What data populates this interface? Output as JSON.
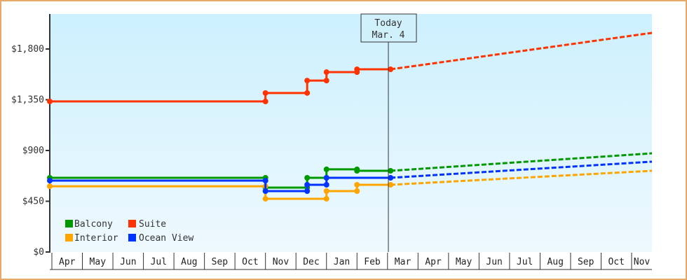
{
  "chart_data": {
    "type": "line",
    "title": "",
    "xlabel": "",
    "ylabel": "",
    "ylim": [
      0,
      2100
    ],
    "y_ticks": [
      {
        "value": 0,
        "label": "$0"
      },
      {
        "value": 450,
        "label": "$450"
      },
      {
        "value": 900,
        "label": "$900"
      },
      {
        "value": 1350,
        "label": "$1,350"
      },
      {
        "value": 1800,
        "label": "$1,800"
      }
    ],
    "x_months": [
      "Apr",
      "May",
      "Jun",
      "Jul",
      "Aug",
      "Sep",
      "Oct",
      "Nov",
      "Dec",
      "Jan",
      "Feb",
      "Mar",
      "Apr",
      "May",
      "Jun",
      "Jul",
      "Aug",
      "Sep",
      "Oct",
      "Nov"
    ],
    "today_marker": {
      "line1": "Today",
      "line2": "Mar. 4"
    },
    "grid": false,
    "legend_position": "bottom-left inside plot",
    "series": [
      {
        "name": "Balcony",
        "color": "#009900",
        "history": [
          [
            "Apr 1",
            658
          ],
          [
            "Nov 1",
            658
          ],
          [
            "Nov 1",
            571
          ],
          [
            "Dec 12",
            571
          ],
          [
            "Dec 12",
            658
          ],
          [
            "Jan 1",
            658
          ],
          [
            "Jan 1",
            733
          ],
          [
            "Feb 1",
            733
          ],
          [
            "Feb 1",
            720
          ],
          [
            "Mar 4",
            720
          ]
        ],
        "forecast": [
          [
            "Mar 4",
            720
          ],
          [
            "Nov 30",
            875
          ]
        ]
      },
      {
        "name": "Suite",
        "color": "#ff3300",
        "history": [
          [
            "Apr 1",
            1335
          ],
          [
            "Nov 1",
            1335
          ],
          [
            "Nov 1",
            1410
          ],
          [
            "Dec 12",
            1410
          ],
          [
            "Dec 12",
            1520
          ],
          [
            "Jan 1",
            1520
          ],
          [
            "Jan 1",
            1595
          ],
          [
            "Feb 1",
            1595
          ],
          [
            "Feb 1",
            1620
          ],
          [
            "Mar 4",
            1620
          ]
        ],
        "forecast": [
          [
            "Mar 4",
            1620
          ],
          [
            "Nov 30",
            1943
          ]
        ]
      },
      {
        "name": "Interior",
        "color": "#ffa500",
        "history": [
          [
            "Apr 1",
            583
          ],
          [
            "Nov 1",
            583
          ],
          [
            "Nov 1",
            472
          ],
          [
            "Jan 1",
            472
          ],
          [
            "Jan 1",
            540
          ],
          [
            "Feb 1",
            540
          ],
          [
            "Feb 1",
            596
          ],
          [
            "Mar 4",
            596
          ]
        ],
        "forecast": [
          [
            "Mar 4",
            596
          ],
          [
            "Nov 30",
            720
          ]
        ]
      },
      {
        "name": "Ocean View",
        "color": "#0033ff",
        "history": [
          [
            "Apr 1",
            633
          ],
          [
            "Nov 1",
            633
          ],
          [
            "Nov 1",
            540
          ],
          [
            "Dec 12",
            540
          ],
          [
            "Dec 12",
            596
          ],
          [
            "Jan 1",
            596
          ],
          [
            "Jan 1",
            658
          ],
          [
            "Mar 4",
            658
          ]
        ],
        "forecast": [
          [
            "Mar 4",
            658
          ],
          [
            "Nov 30",
            801
          ]
        ]
      }
    ]
  },
  "legend": [
    {
      "label": "Balcony",
      "color": "#009900"
    },
    {
      "label": "Suite",
      "color": "#ff3300"
    },
    {
      "label": "Interior",
      "color": "#ffa500"
    },
    {
      "label": "Ocean View",
      "color": "#0033ff"
    }
  ],
  "today": {
    "line1": "Today",
    "line2": "Mar. 4"
  }
}
